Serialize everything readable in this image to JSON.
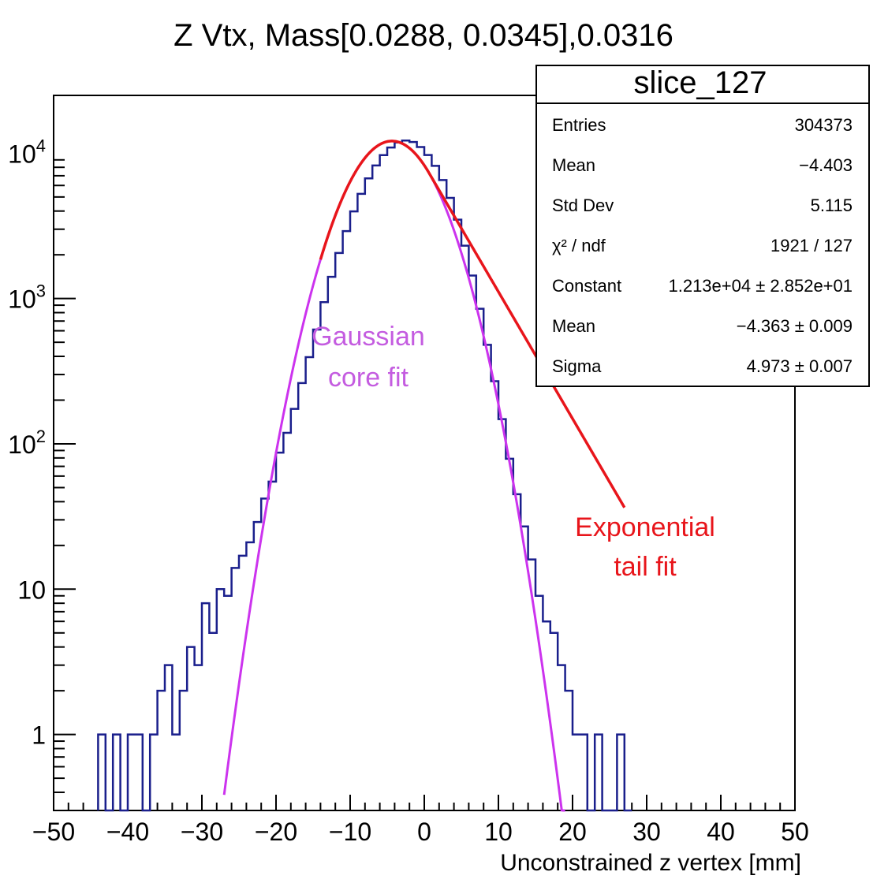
{
  "chart_data": {
    "type": "histogram",
    "title": "Z Vtx, Mass[0.0288, 0.0345],0.0316",
    "xlabel": "Unconstrained z vertex [mm]",
    "ylabel": "",
    "xlim": [
      -50,
      50
    ],
    "ylim": [
      0.3,
      25000
    ],
    "yscale": "log",
    "grid": false,
    "x_ticks": [
      -50,
      -40,
      -30,
      -20,
      -10,
      0,
      10,
      20,
      30,
      40,
      50
    ],
    "x_tick_labels": [
      "−50",
      "−40",
      "−30",
      "−20",
      "−10",
      "0",
      "10",
      "20",
      "30",
      "40",
      "50"
    ],
    "y_ticks": [
      1,
      10,
      100,
      1000,
      10000
    ],
    "y_tick_labels": [
      {
        "base": "1",
        "exp": ""
      },
      {
        "base": "10",
        "exp": ""
      },
      {
        "base": "10",
        "exp": "2"
      },
      {
        "base": "10",
        "exp": "3"
      },
      {
        "base": "10",
        "exp": "4"
      }
    ],
    "histogram": {
      "color": "#1a1f8c",
      "bin_width": 1,
      "bin_starts": [
        -44,
        -43,
        -42,
        -41,
        -40,
        -39,
        -38,
        -37,
        -36,
        -35,
        -34,
        -33,
        -32,
        -31,
        -30,
        -29,
        -28,
        -27,
        -26,
        -25,
        -24,
        -23,
        -22,
        -21,
        -20,
        -19,
        -18,
        -17,
        -16,
        -15,
        -14,
        -13,
        -12,
        -11,
        -10,
        -9,
        -8,
        -7,
        -6,
        -5,
        -4,
        -3,
        -2,
        -1,
        0,
        1,
        2,
        3,
        4,
        5,
        6,
        7,
        8,
        9,
        10,
        11,
        12,
        13,
        14,
        15,
        16,
        17,
        18,
        19,
        20,
        21,
        22,
        23,
        24,
        25,
        26,
        27
      ],
      "values": [
        1,
        0.3,
        1,
        0.3,
        1,
        1,
        0.3,
        1,
        2,
        3,
        1,
        2,
        4,
        3,
        8,
        5,
        10,
        9,
        14,
        17,
        21,
        29,
        42,
        55,
        87,
        119,
        174,
        262,
        395,
        612,
        944,
        1410,
        2060,
        2910,
        3980,
        5250,
        6710,
        8240,
        9710,
        10950,
        11850,
        12230,
        11950,
        11030,
        9720,
        8180,
        6540,
        4930,
        3490,
        2310,
        1440,
        850,
        480,
        270,
        148,
        79,
        45,
        27,
        16,
        9,
        6,
        5,
        3,
        2,
        1,
        1,
        0.3,
        1,
        0.3,
        0.3,
        1,
        0.3
      ]
    },
    "fits": [
      {
        "name": "Gaussian core fit",
        "color": "#cc33ee",
        "function": "gaussian",
        "constant": 12130,
        "mean": -4.363,
        "sigma": 4.973,
        "x_range": [
          -27,
          19
        ]
      },
      {
        "name": "Exponential tail fit",
        "color": "#e8151b",
        "function": "gaussian_plus_exponential_tail",
        "constant": 12130,
        "mean": -4.363,
        "sigma": 4.973,
        "x_range": [
          -14,
          27
        ]
      }
    ],
    "annotations": [
      {
        "lines": [
          "Gaussian",
          "core fit"
        ],
        "color": "#c45ce0"
      },
      {
        "lines": [
          "Exponential",
          "tail fit"
        ],
        "color": "#e8151b"
      }
    ],
    "stats_box": {
      "title": "slice_127",
      "rows": [
        {
          "label": "Entries",
          "value": "304373"
        },
        {
          "label": "Mean",
          "value": "−4.403"
        },
        {
          "label": "Std Dev",
          "value": "5.115"
        },
        {
          "label": "χ² / ndf",
          "value": "1921 / 127"
        },
        {
          "label": "Constant",
          "value": "1.213e+04 ± 2.852e+01"
        },
        {
          "label": "Mean",
          "value": "−4.363 ± 0.009"
        },
        {
          "label": "Sigma",
          "value": "4.973 ± 0.007"
        }
      ]
    }
  }
}
